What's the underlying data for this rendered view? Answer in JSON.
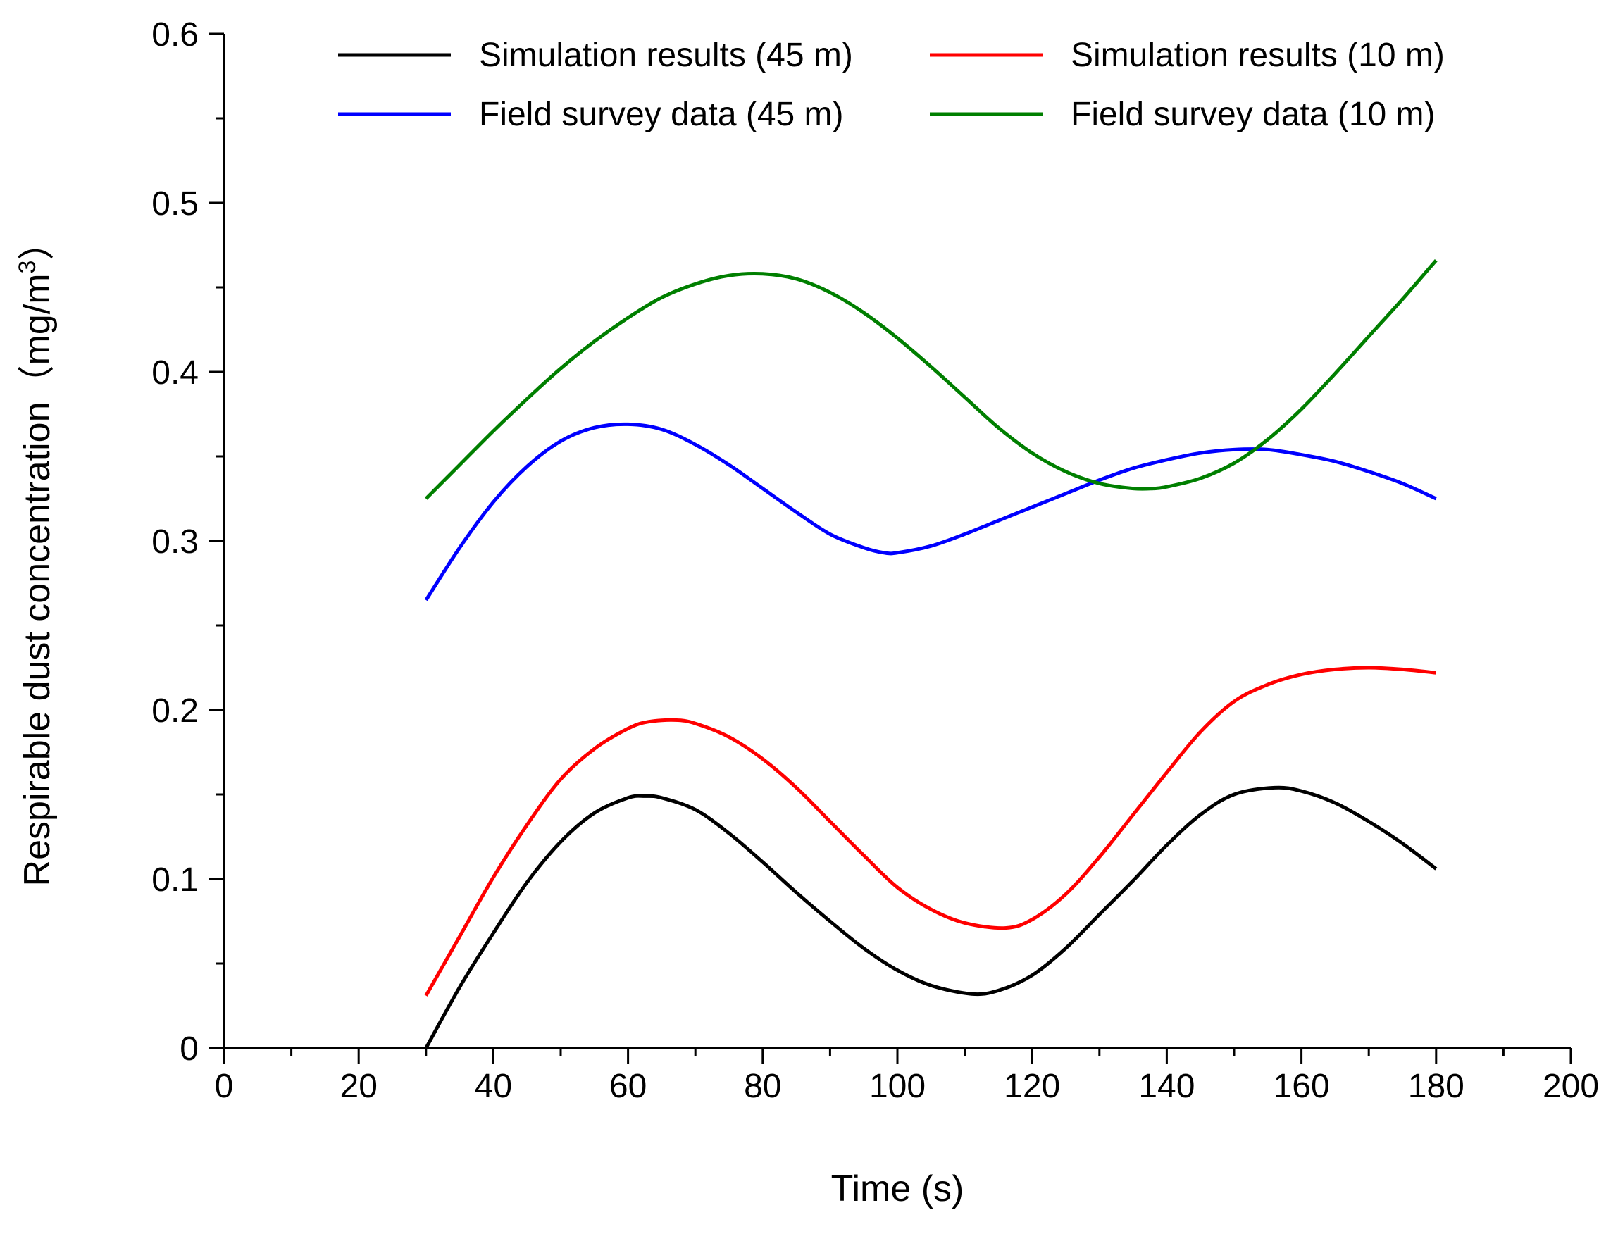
{
  "chart_data": {
    "type": "line",
    "title": "",
    "xlabel": "Time (s)",
    "ylabel": {
      "main": "Respirable dust concentration（mg/m",
      "superscript": "3",
      "close": "）"
    },
    "xlim": [
      0,
      200
    ],
    "ylim": [
      0,
      0.6
    ],
    "x_ticks": [
      0,
      20,
      40,
      60,
      80,
      100,
      120,
      140,
      160,
      180,
      200
    ],
    "x_tick_labels": [
      "0",
      "20",
      "40",
      "60",
      "80",
      "100",
      "120",
      "140",
      "160",
      "180",
      "200"
    ],
    "y_ticks": [
      0,
      0.1,
      0.2,
      0.3,
      0.4,
      0.5,
      0.6
    ],
    "y_tick_labels": [
      "0",
      "0.1",
      "0.2",
      "0.3",
      "0.4",
      "0.5",
      "0.6"
    ],
    "x_minor_step": 10,
    "y_minor_step": 0.05,
    "grid": false,
    "legend_position": "top",
    "series": [
      {
        "name": "Simulation results (45 m)",
        "color": "#000000",
        "x": [
          30,
          35,
          40,
          45,
          50,
          55,
          60,
          62.5,
          65,
          70,
          75,
          80,
          85,
          90,
          95,
          100,
          105,
          111,
          115,
          120,
          125,
          130,
          135,
          140,
          145,
          150,
          156,
          160,
          165,
          170,
          175,
          180
        ],
        "y": [
          0.0,
          0.036,
          0.068,
          0.098,
          0.122,
          0.139,
          0.148,
          0.149,
          0.148,
          0.141,
          0.127,
          0.11,
          0.092,
          0.075,
          0.059,
          0.046,
          0.037,
          0.032,
          0.034,
          0.043,
          0.059,
          0.079,
          0.099,
          0.12,
          0.138,
          0.15,
          0.154,
          0.152,
          0.145,
          0.134,
          0.121,
          0.106
        ]
      },
      {
        "name": "Simulation results (10 m)",
        "color": "#ff0000",
        "x": [
          30,
          35,
          40,
          45,
          50,
          55,
          60,
          63,
          67,
          70,
          75,
          80,
          85,
          90,
          95,
          100,
          105,
          110,
          116,
          120,
          125,
          130,
          135,
          140,
          145,
          150,
          155,
          160,
          165,
          170,
          175,
          180
        ],
        "y": [
          0.031,
          0.066,
          0.101,
          0.132,
          0.159,
          0.177,
          0.189,
          0.193,
          0.194,
          0.192,
          0.184,
          0.171,
          0.154,
          0.134,
          0.114,
          0.095,
          0.082,
          0.074,
          0.071,
          0.076,
          0.091,
          0.113,
          0.138,
          0.163,
          0.187,
          0.205,
          0.215,
          0.221,
          0.224,
          0.225,
          0.224,
          0.222
        ]
      },
      {
        "name": "Field survey data (45 m)",
        "color": "#0000ff",
        "x": [
          30,
          35,
          40,
          45,
          50,
          55,
          60,
          65,
          70,
          75,
          80,
          85,
          90,
          95,
          98,
          100,
          105,
          110,
          115,
          120,
          125,
          130,
          135,
          140,
          145,
          150,
          155,
          160,
          165,
          170,
          175,
          180
        ],
        "y": [
          0.265,
          0.296,
          0.323,
          0.344,
          0.359,
          0.367,
          0.369,
          0.366,
          0.357,
          0.345,
          0.331,
          0.317,
          0.304,
          0.296,
          0.293,
          0.293,
          0.297,
          0.304,
          0.312,
          0.32,
          0.328,
          0.336,
          0.343,
          0.348,
          0.352,
          0.354,
          0.354,
          0.351,
          0.347,
          0.341,
          0.334,
          0.325
        ]
      },
      {
        "name": "Field survey data (10 m)",
        "color": "#007f00",
        "x": [
          30,
          35,
          40,
          45,
          50,
          55,
          60,
          65,
          70,
          75,
          80,
          85,
          90,
          95,
          100,
          105,
          110,
          115,
          120,
          125,
          130,
          135,
          138,
          140,
          145,
          150,
          155,
          160,
          165,
          170,
          175,
          180
        ],
        "y": [
          0.325,
          0.345,
          0.365,
          0.384,
          0.402,
          0.418,
          0.432,
          0.444,
          0.452,
          0.457,
          0.458,
          0.455,
          0.447,
          0.435,
          0.42,
          0.403,
          0.385,
          0.367,
          0.352,
          0.341,
          0.334,
          0.331,
          0.331,
          0.332,
          0.337,
          0.346,
          0.36,
          0.378,
          0.399,
          0.421,
          0.443,
          0.466
        ]
      }
    ]
  }
}
